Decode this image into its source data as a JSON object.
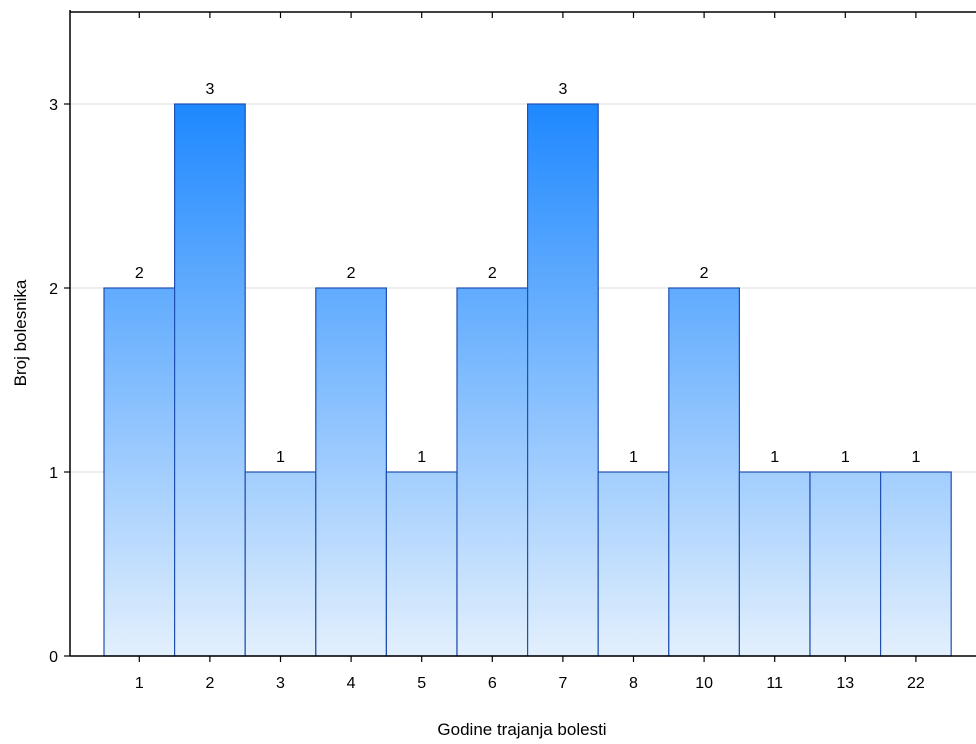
{
  "chart_data": {
    "type": "bar",
    "categories": [
      "1",
      "2",
      "3",
      "4",
      "5",
      "6",
      "7",
      "8",
      "10",
      "11",
      "13",
      "22"
    ],
    "values": [
      2,
      3,
      1,
      2,
      1,
      2,
      3,
      1,
      2,
      1,
      1,
      1
    ],
    "xlabel": "Godine trajanja bolesti",
    "ylabel": "Broj bolesnika",
    "ylim": [
      0,
      3.5
    ],
    "yticks": [
      0,
      1,
      2,
      3
    ],
    "grid": true,
    "data_labels": true,
    "colors": {
      "bar_top": "#1e88ff",
      "bar_bottom": "#e3f0fd",
      "bar_edge": "#1f4fb0",
      "grid": "#dcdcdc"
    }
  }
}
